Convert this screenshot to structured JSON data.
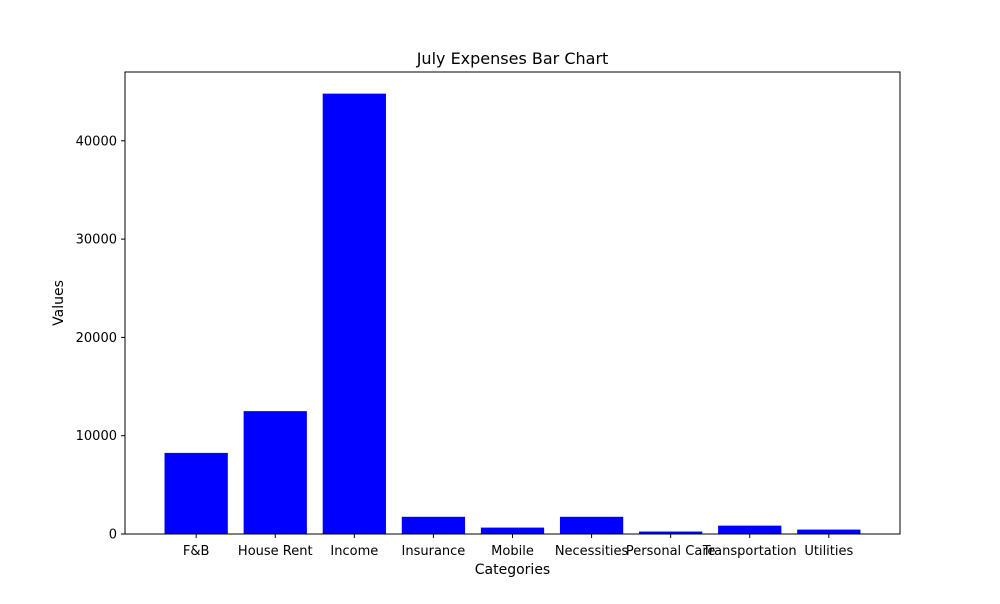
{
  "chart_data": {
    "type": "bar",
    "title": "July Expenses Bar Chart",
    "xlabel": "Categories",
    "ylabel": "Values",
    "categories": [
      "F&B",
      "House Rent",
      "Income",
      "Insurance",
      "Mobile",
      "Necessities",
      "Personal Care",
      "Transportation",
      "Utilities"
    ],
    "values": [
      8250,
      12500,
      44800,
      1750,
      650,
      1750,
      250,
      850,
      450
    ],
    "ylim": [
      0,
      47000
    ],
    "yticks": [
      0,
      10000,
      20000,
      30000,
      40000
    ],
    "grid": false,
    "legend": "none",
    "bar_color": "#0000ff"
  }
}
